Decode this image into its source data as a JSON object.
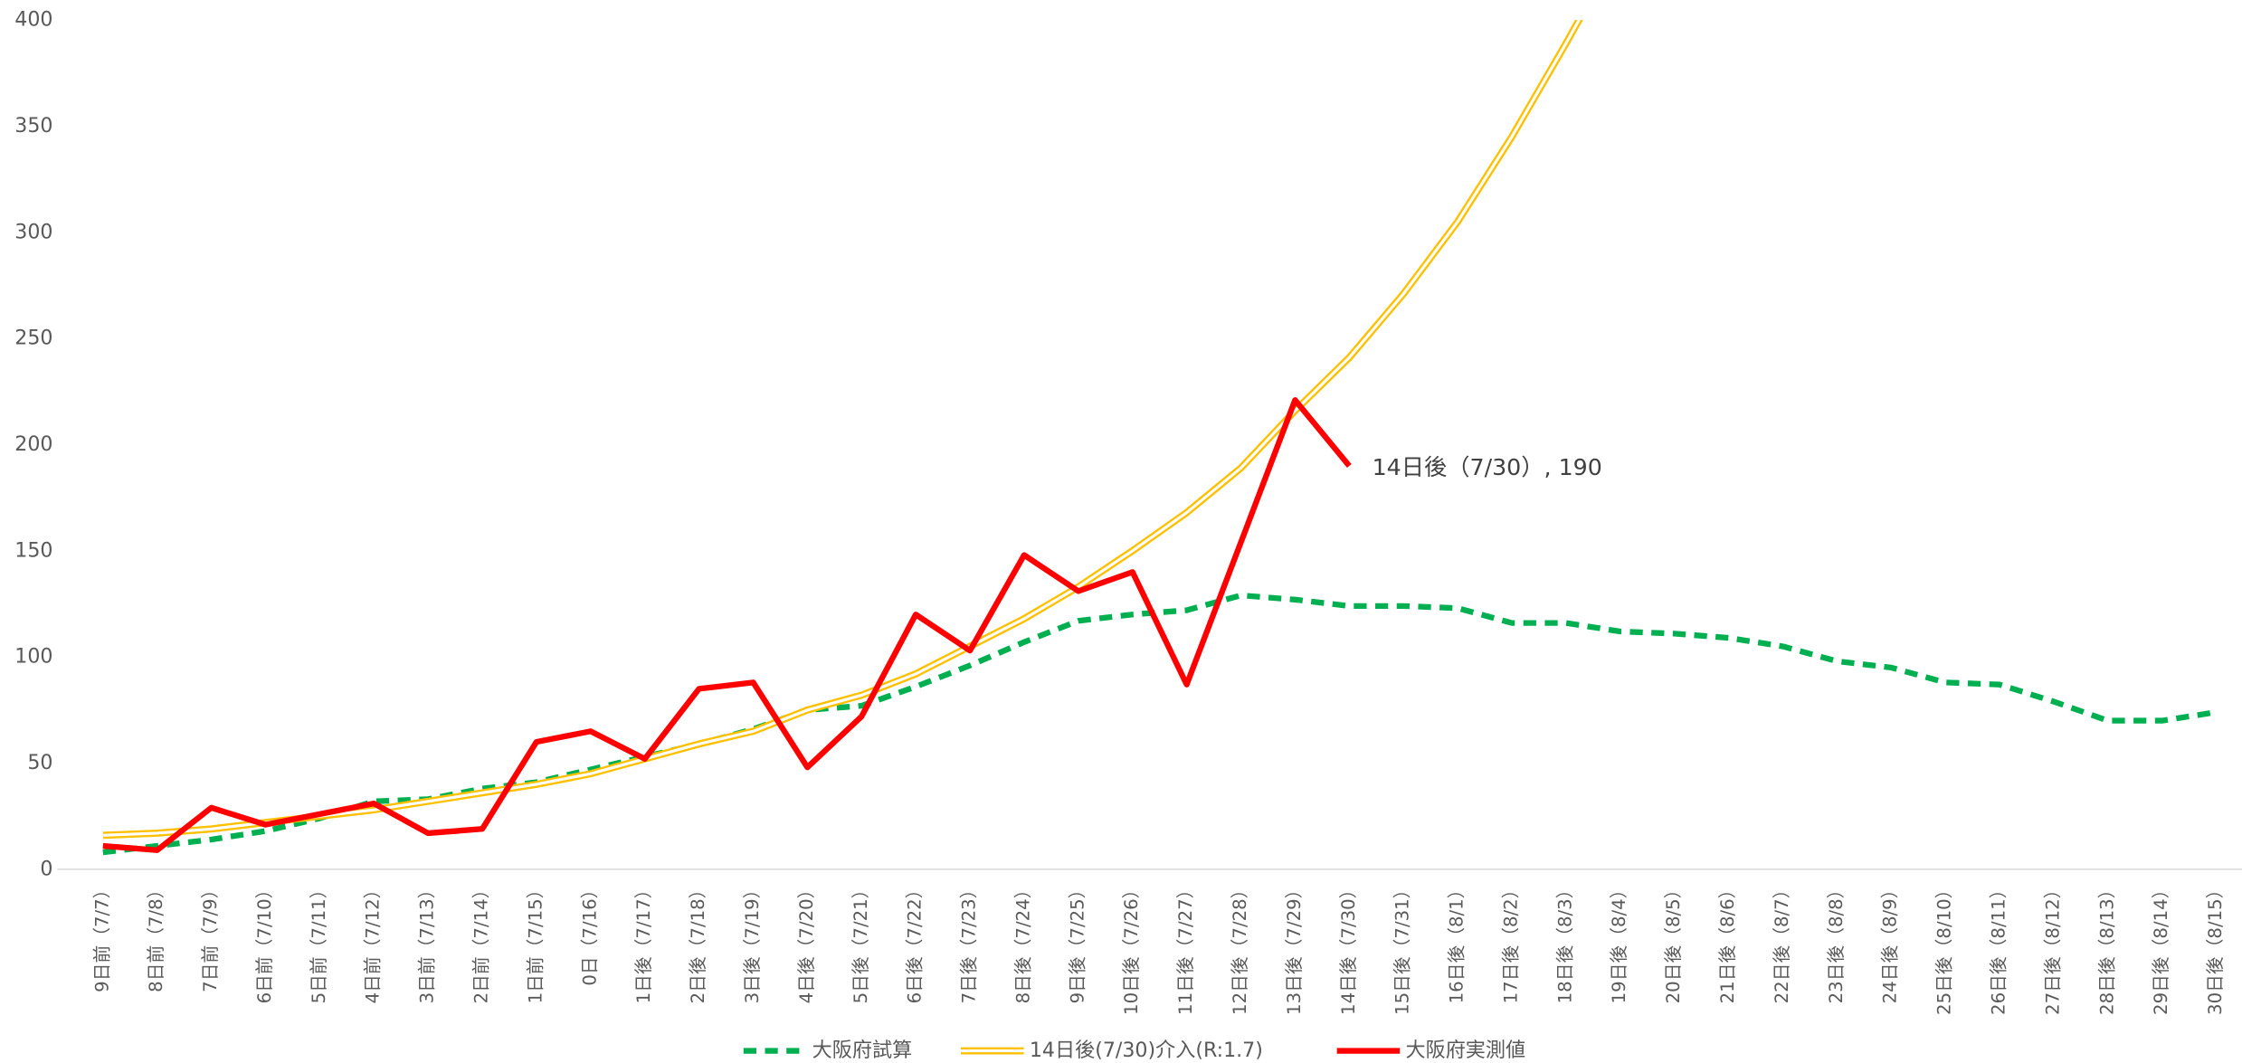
{
  "chart_data": {
    "type": "line",
    "categories": [
      "9日前（7/7）",
      "8日前（7/8）",
      "7日前（7/9）",
      "6日前（7/10）",
      "5日前（7/11）",
      "4日前（7/12）",
      "3日前（7/13）",
      "2日前（7/14）",
      "1日前（7/15）",
      "0日（7/16）",
      "1日後（7/17）",
      "2日後（7/18）",
      "3日後（7/19）",
      "4日後（7/20）",
      "5日後（7/21）",
      "6日後（7/22）",
      "7日後（7/23）",
      "8日後（7/24）",
      "9日後（7/25）",
      "10日後（7/26）",
      "11日後（7/27）",
      "12日後（7/28）",
      "13日後（7/29）",
      "14日後（7/30）",
      "15日後（7/31）",
      "16日後（8/1）",
      "17日後（8/2）",
      "18日後（8/3）",
      "19日後（8/4）",
      "20日後（8/5）",
      "21日後（8/6）",
      "22日後（8/7）",
      "23日後（8/8）",
      "24日後（8/9）",
      "25日後（8/10）",
      "26日後（8/11）",
      "27日後（8/12）",
      "28日後（8/13）",
      "29日後（8/14）",
      "30日後（8/15）"
    ],
    "series": [
      {
        "name": "大阪府試算",
        "color": "#00b050",
        "style": "dashed",
        "values": [
          8,
          11,
          14,
          18,
          24,
          32,
          33,
          38,
          41,
          47,
          53,
          59,
          66,
          75,
          77,
          86,
          96,
          107,
          117,
          120,
          122,
          129,
          127,
          124,
          124,
          123,
          116,
          116,
          112,
          111,
          109,
          105,
          98,
          95,
          88,
          87,
          79,
          70,
          70,
          74
        ]
      },
      {
        "name": "14日後(7/30)介入(R:1.7)",
        "color": "#ffc000",
        "style": "double",
        "values": [
          16,
          17,
          19,
          22,
          25,
          28,
          32,
          36,
          40,
          45,
          52,
          59,
          65,
          75,
          82,
          92,
          105,
          118,
          133,
          150,
          168,
          189,
          216,
          241,
          271,
          305,
          345,
          389,
          435,
          null,
          null,
          null,
          null,
          null,
          null,
          null,
          null,
          null,
          null,
          null
        ]
      },
      {
        "name": "大阪府実測値",
        "color": "#ff0000",
        "style": "solid",
        "values": [
          11,
          9,
          29,
          21,
          26,
          31,
          17,
          19,
          60,
          65,
          52,
          85,
          88,
          48,
          72,
          120,
          103,
          148,
          131,
          140,
          87,
          154,
          221,
          190,
          null,
          null,
          null,
          null,
          null,
          null,
          null,
          null,
          null,
          null,
          null,
          null,
          null,
          null,
          null,
          null
        ],
        "value_labels": [
          null,
          null,
          null,
          null,
          null,
          null,
          null,
          null,
          null,
          null,
          null,
          null,
          null,
          null,
          null,
          null,
          null,
          null,
          null,
          null,
          null,
          null,
          null,
          "14日後（7/30）, 190",
          null,
          null,
          null,
          null,
          null,
          null,
          null,
          null,
          null,
          null,
          null,
          null,
          null,
          null,
          null,
          null
        ]
      }
    ],
    "ylim": [
      0,
      400
    ],
    "yticks": [
      0,
      50,
      100,
      150,
      200,
      250,
      300,
      350,
      400
    ],
    "grid": false,
    "legend": "bottom"
  }
}
